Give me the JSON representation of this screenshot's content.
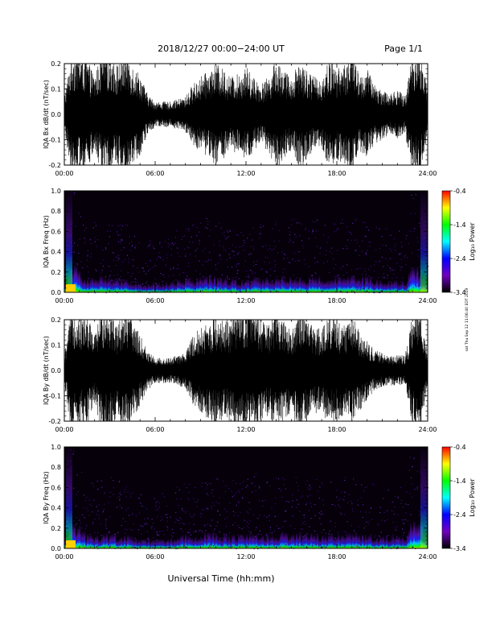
{
  "header": {
    "date_range": "2018/12/27   00:00−24:00 UT",
    "page": "Page 1/1"
  },
  "xlabel": "Universal Time (hh:mm)",
  "side_stamp": "sat Thu Sep 12 11:06:40 EDT 2019",
  "x_ticks": [
    "00:00",
    "06:00",
    "12:00",
    "18:00",
    "24:00"
  ],
  "colorbar": {
    "label": "Log₁₀ Power",
    "ticks": [
      "-0.4",
      "-1.4",
      "-2.4",
      "-3.4"
    ],
    "range": [
      -3.4,
      -0.4
    ],
    "colors": [
      "#ff0000",
      "#ffff00",
      "#00ff00",
      "#00ffff",
      "#0000ff",
      "#7000c0",
      "#000000"
    ]
  },
  "chart_data": [
    {
      "type": "line",
      "id": "bx-dbdt",
      "ylabel": "IQA Bx dB/dt (nT/sec)",
      "xlim": [
        0,
        24
      ],
      "ylim": [
        -0.2,
        0.2
      ],
      "y_ticks": [
        "0.2",
        "0.1",
        "0.0",
        "-0.1",
        "-0.2"
      ],
      "series": [
        {
          "x": [
            0,
            0.5,
            1,
            1.5,
            2,
            2.5,
            3,
            3.5,
            4,
            4.5,
            5,
            5.5,
            6,
            6.5,
            7,
            7.5,
            8,
            8.5,
            9,
            9.5,
            10,
            10.5,
            11,
            11.5,
            12,
            12.5,
            13,
            13.5,
            14,
            14.5,
            15,
            15.5,
            16,
            16.5,
            17,
            17.5,
            18,
            18.5,
            19,
            19.5,
            20,
            20.5,
            21,
            21.5,
            22,
            22.5,
            23,
            23.5,
            24
          ],
          "amplitude": [
            0.07,
            0.25,
            0.25,
            0.22,
            0.15,
            0.25,
            0.25,
            0.2,
            0.25,
            0.2,
            0.16,
            0.08,
            0.05,
            0.05,
            0.05,
            0.06,
            0.07,
            0.12,
            0.15,
            0.17,
            0.2,
            0.18,
            0.15,
            0.16,
            0.19,
            0.15,
            0.12,
            0.15,
            0.22,
            0.18,
            0.14,
            0.22,
            0.18,
            0.15,
            0.14,
            0.22,
            0.18,
            0.2,
            0.25,
            0.15,
            0.18,
            0.12,
            0.1,
            0.08,
            0.1,
            0.07,
            0.25,
            0.25,
            0.1
          ]
        }
      ]
    },
    {
      "type": "heatmap",
      "id": "bx-spec",
      "ylabel": "IQA Bx Freq (Hz)",
      "xlim": [
        0,
        24
      ],
      "ylim": [
        0,
        1.0
      ],
      "y_ticks": [
        "1.0",
        "0.8",
        "0.6",
        "0.4",
        "0.2",
        "0.0"
      ],
      "activity": [
        0.4,
        1.0,
        0.7,
        0.5,
        0.6,
        0.55,
        0.5,
        0.5,
        0.5,
        0.4,
        0.3,
        0.3,
        0.3,
        0.3,
        0.35,
        0.45,
        0.5,
        0.5,
        0.55,
        0.6,
        0.55,
        0.5,
        0.5,
        0.45,
        0.5,
        0.55,
        0.5,
        0.5,
        0.55,
        0.6,
        0.6,
        0.55,
        0.55,
        0.6,
        0.55,
        0.5,
        0.55,
        0.6,
        0.6,
        0.55,
        0.55,
        0.5,
        0.45,
        0.4,
        0.4,
        0.4,
        1.0,
        0.8,
        0.4
      ]
    },
    {
      "type": "line",
      "id": "by-dbdt",
      "ylabel": "IQA By dB/dt (nT/sec)",
      "xlim": [
        0,
        24
      ],
      "ylim": [
        -0.2,
        0.2
      ],
      "y_ticks": [
        "0.2",
        "0.1",
        "0.0",
        "-0.1",
        "-0.2"
      ],
      "series": [
        {
          "x": [
            0,
            0.5,
            1,
            1.5,
            2,
            2.5,
            3,
            3.5,
            4,
            4.5,
            5,
            5.5,
            6,
            6.5,
            7,
            7.5,
            8,
            8.5,
            9,
            9.5,
            10,
            10.5,
            11,
            11.5,
            12,
            12.5,
            13,
            13.5,
            14,
            14.5,
            15,
            15.5,
            16,
            16.5,
            17,
            17.5,
            18,
            18.5,
            19,
            19.5,
            20,
            20.5,
            21,
            21.5,
            22,
            22.5,
            23,
            23.5,
            24
          ],
          "amplitude": [
            0.06,
            0.25,
            0.22,
            0.22,
            0.14,
            0.25,
            0.25,
            0.18,
            0.25,
            0.2,
            0.14,
            0.08,
            0.05,
            0.05,
            0.05,
            0.06,
            0.07,
            0.14,
            0.17,
            0.19,
            0.22,
            0.2,
            0.2,
            0.25,
            0.25,
            0.25,
            0.2,
            0.18,
            0.25,
            0.2,
            0.16,
            0.25,
            0.2,
            0.18,
            0.16,
            0.22,
            0.2,
            0.18,
            0.22,
            0.16,
            0.12,
            0.08,
            0.07,
            0.06,
            0.06,
            0.06,
            0.22,
            0.22,
            0.08
          ]
        }
      ]
    },
    {
      "type": "heatmap",
      "id": "by-spec",
      "ylabel": "IQA By Freq (Hz)",
      "xlim": [
        0,
        24
      ],
      "ylim": [
        0,
        1.0
      ],
      "y_ticks": [
        "1.0",
        "0.8",
        "0.6",
        "0.4",
        "0.2",
        "0.0"
      ],
      "activity": [
        0.4,
        1.0,
        0.7,
        0.5,
        0.55,
        0.5,
        0.55,
        0.5,
        0.5,
        0.4,
        0.3,
        0.3,
        0.3,
        0.3,
        0.35,
        0.45,
        0.5,
        0.5,
        0.55,
        0.6,
        0.55,
        0.5,
        0.5,
        0.5,
        0.55,
        0.6,
        0.55,
        0.5,
        0.55,
        0.6,
        0.6,
        0.55,
        0.55,
        0.55,
        0.5,
        0.5,
        0.5,
        0.55,
        0.55,
        0.5,
        0.5,
        0.45,
        0.4,
        0.4,
        0.4,
        0.4,
        1.0,
        0.8,
        0.4
      ]
    }
  ]
}
